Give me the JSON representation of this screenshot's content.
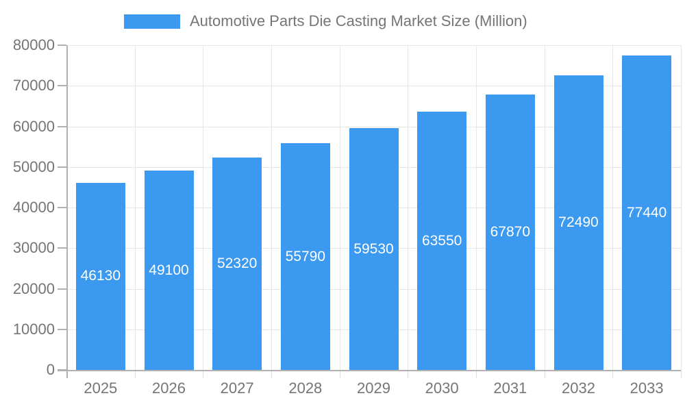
{
  "legend": {
    "label": "Automotive Parts Die Casting Market Size (Million)"
  },
  "chart_data": {
    "type": "bar",
    "title": "Automotive Parts Die Casting Market Size (Million)",
    "categories": [
      "2025",
      "2026",
      "2027",
      "2028",
      "2029",
      "2030",
      "2031",
      "2032",
      "2033"
    ],
    "values": [
      46130,
      49100,
      52320,
      55790,
      59530,
      63550,
      67870,
      72490,
      77440
    ],
    "bar_labels": [
      "46130",
      "49100",
      "52320",
      "55790",
      "59530",
      "63550",
      "67870",
      "72490",
      "77440"
    ],
    "xlabel": "",
    "ylabel": "",
    "ylim": [
      0,
      80000
    ],
    "y_ticks": [
      0,
      10000,
      20000,
      30000,
      40000,
      50000,
      60000,
      70000,
      80000
    ],
    "y_tick_labels": [
      "0",
      "10000",
      "20000",
      "30000",
      "40000",
      "50000",
      "60000",
      "70000",
      "80000"
    ],
    "grid": true,
    "legend_position": "top",
    "colors": {
      "bar": "#3b99f0",
      "bar_label": "#ffffff",
      "axis_text": "#757575",
      "legend_text": "#757575",
      "gridline": "#e6e6e6",
      "axis_line": "#b0b0b0",
      "category_tick": "#e0e0e0"
    }
  }
}
